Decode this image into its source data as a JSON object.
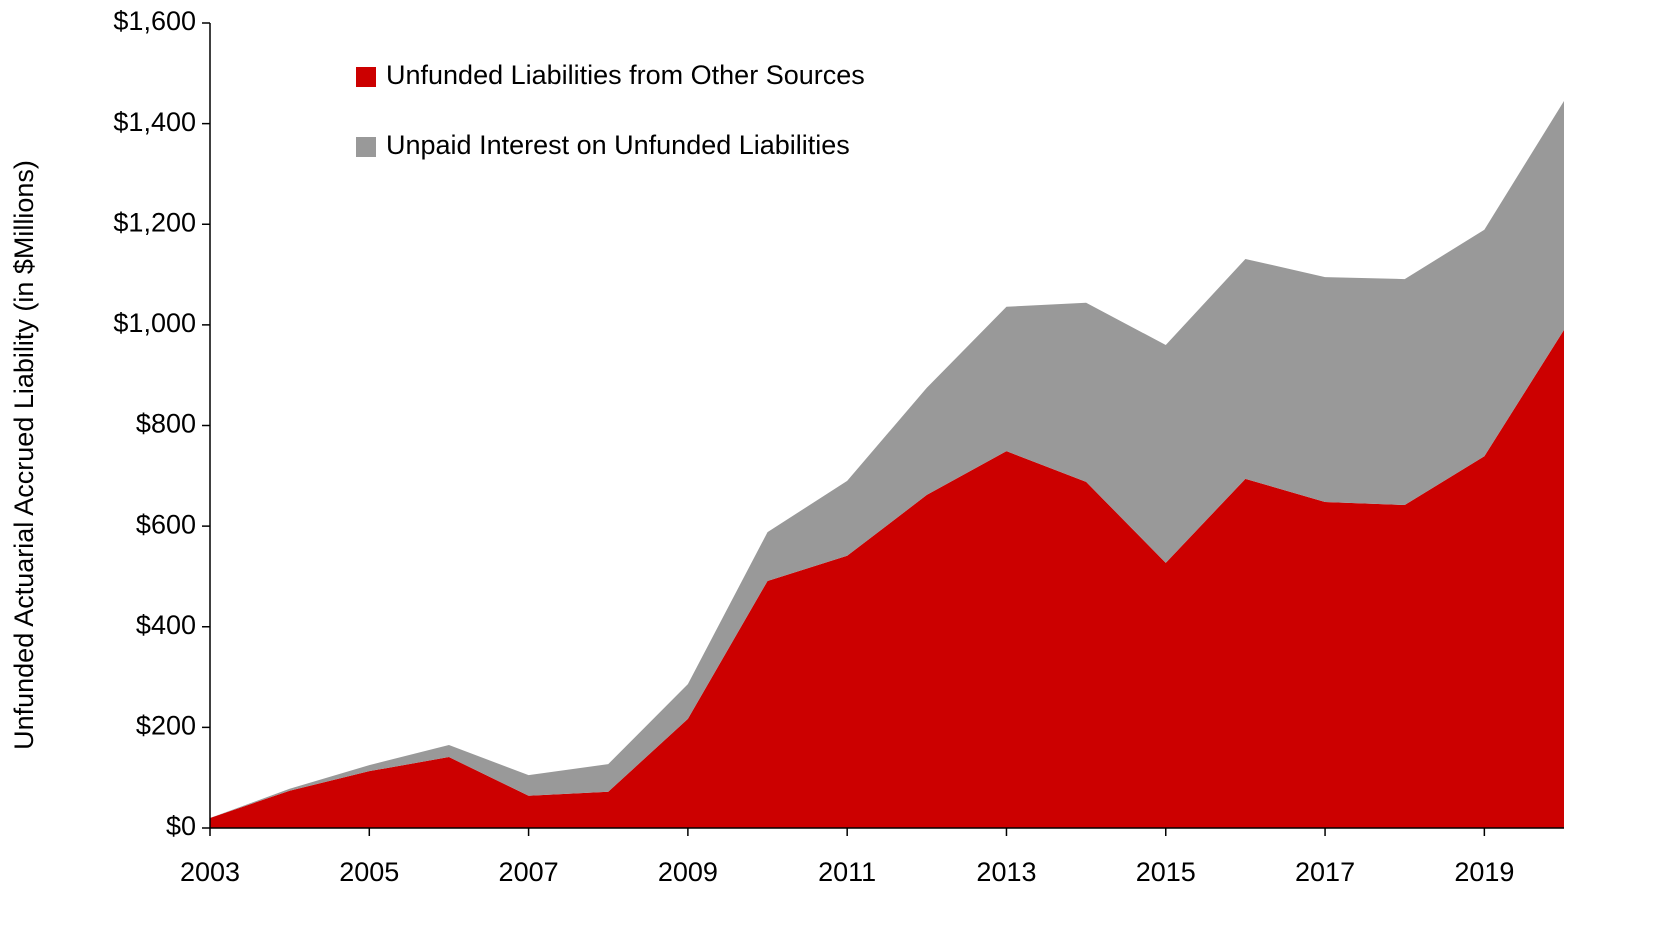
{
  "chart_data": {
    "type": "stacked_area",
    "y_label": "Unfunded Actuarial Accrued Liability (in $Millions)",
    "x": [
      2003,
      2004,
      2005,
      2006,
      2007,
      2008,
      2009,
      2010,
      2011,
      2012,
      2013,
      2014,
      2015,
      2016,
      2017,
      2018,
      2019,
      2020
    ],
    "series": [
      {
        "name": "Unfunded Liabilities from Other Sources",
        "color": "#cc0000",
        "values": [
          20,
          74,
          113,
          141,
          64,
          72,
          217,
          491,
          541,
          662,
          749,
          688,
          527,
          694,
          648,
          642,
          739,
          990
        ]
      },
      {
        "name": "Unpaid Interest on Unfunded Liabilities",
        "color": "#999999",
        "values": [
          0,
          4,
          12,
          24,
          41,
          55,
          69,
          97,
          149,
          213,
          287,
          356,
          433,
          437,
          447,
          449,
          450,
          455
        ]
      }
    ],
    "xlim": [
      2003,
      2020
    ],
    "xticks": [
      2003,
      2005,
      2007,
      2009,
      2011,
      2013,
      2015,
      2017,
      2019
    ],
    "ylim": [
      0,
      1600
    ],
    "yticks": [
      {
        "value": 0,
        "label": "$0"
      },
      {
        "value": 200,
        "label": "$200"
      },
      {
        "value": 400,
        "label": "$400"
      },
      {
        "value": 600,
        "label": "$600"
      },
      {
        "value": 800,
        "label": "$800"
      },
      {
        "value": 1000,
        "label": "$1,000"
      },
      {
        "value": 1200,
        "label": "$1,200"
      },
      {
        "value": 1400,
        "label": "$1,400"
      },
      {
        "value": 1600,
        "label": "$1,600"
      }
    ],
    "grid": false
  }
}
